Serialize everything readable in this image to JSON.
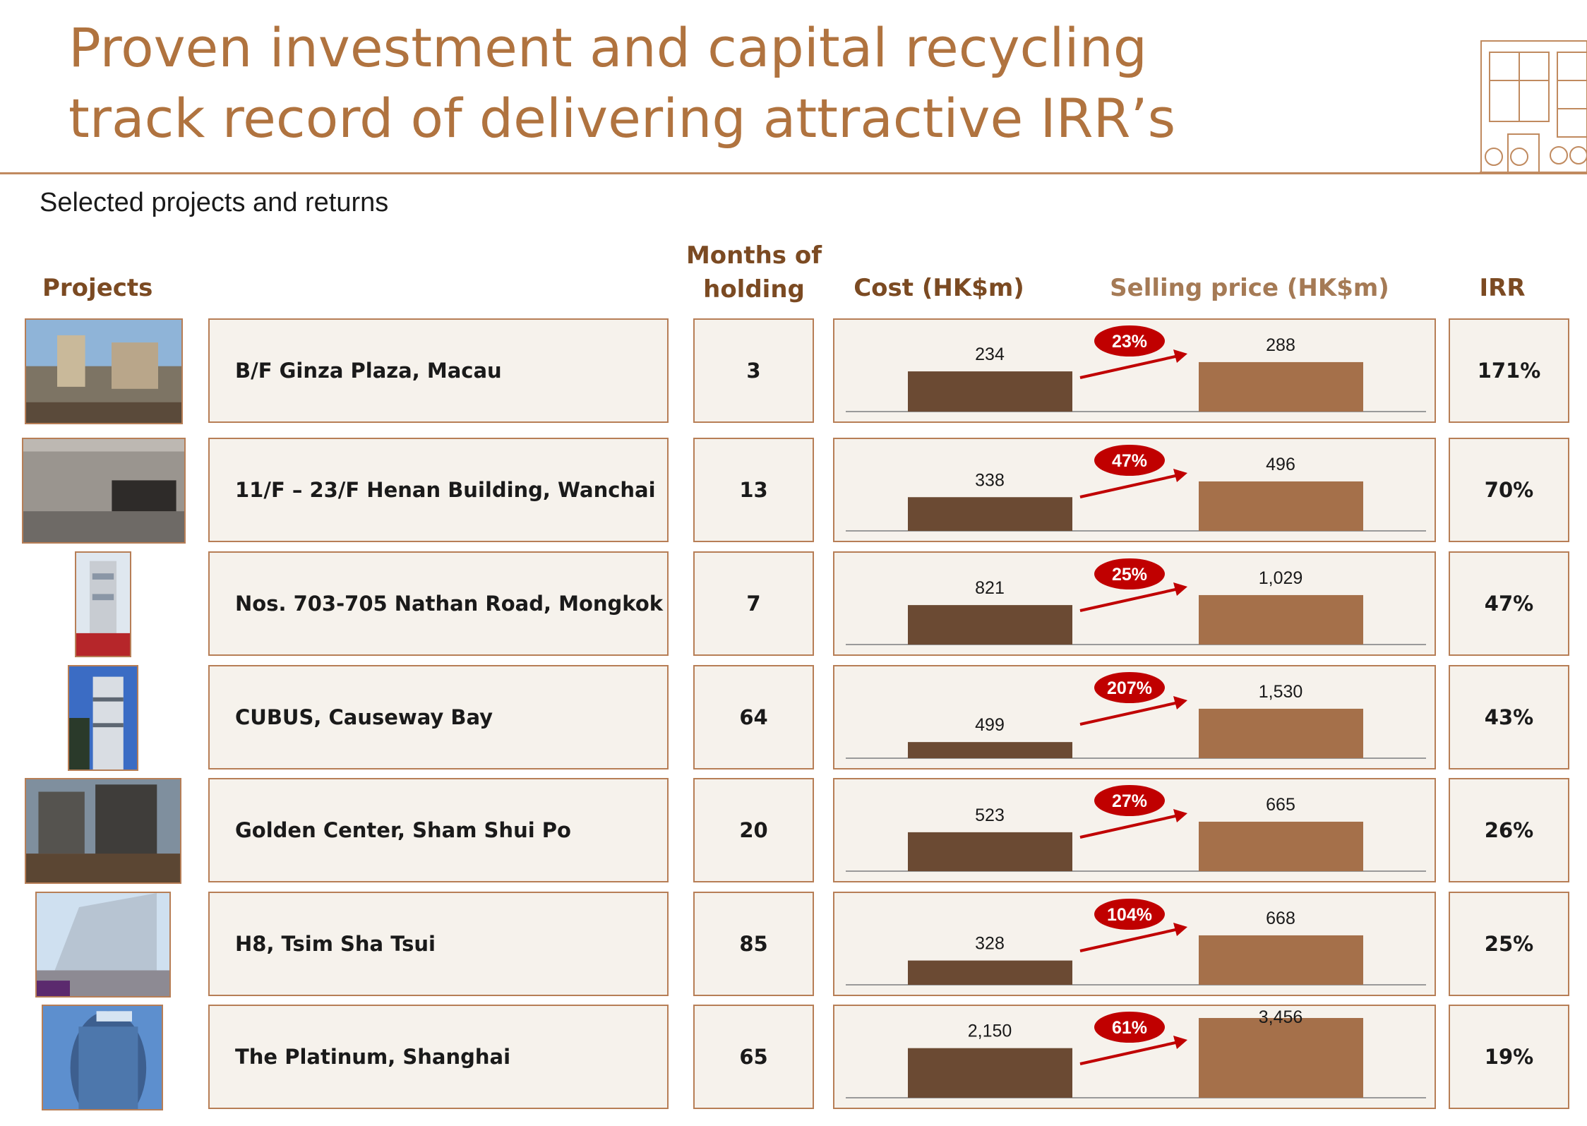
{
  "header": {
    "title_line1": "Proven investment and capital recycling",
    "title_line2": "track record of delivering attractive IRR’s",
    "subtitle": "Selected projects and returns"
  },
  "columns": {
    "projects": "Projects",
    "months_line1": "Months of",
    "months_line2": "holding",
    "cost": "Cost (HK$m)",
    "selling": "Selling price (HK$m)",
    "irr": "IRR"
  },
  "colors": {
    "cost_bar": "#6b4a33",
    "sell_bar": "#a5704a",
    "badge": "#c00000",
    "arrow": "#c00000",
    "title": "#b0733f",
    "box_border": "#b77e56",
    "box_fill": "#f6f2ec"
  },
  "chart_data": {
    "type": "bar",
    "categories": [
      "B/F Ginza Plaza, Macau",
      "11/F – 23/F Henan Building, Wanchai",
      "Nos. 703-705 Nathan Road, Mongkok",
      "CUBUS, Causeway Bay",
      "Golden Center, Sham Shui Po",
      "H8, Tsim Sha Tsui",
      "The Platinum, Shanghai"
    ],
    "series": [
      {
        "name": "Cost (HK$m)",
        "values": [
          234,
          338,
          821,
          499,
          523,
          328,
          2150
        ]
      },
      {
        "name": "Selling price (HK$m)",
        "values": [
          288,
          496,
          1029,
          1530,
          665,
          668,
          3456
        ]
      }
    ],
    "title": "Selected projects and returns"
  },
  "projects": [
    {
      "name": "B/F Ginza Plaza, Macau",
      "months": "3",
      "cost": 234,
      "cost_label": "234",
      "sell": 288,
      "sell_label": "288",
      "gain": "23%",
      "irr": "171%",
      "thumb_icon": "street-scene-icon"
    },
    {
      "name": "11/F – 23/F Henan Building, Wanchai",
      "months": "13",
      "cost": 338,
      "cost_label": "338",
      "sell": 496,
      "sell_label": "496",
      "gain": "47%",
      "irr": "70%",
      "thumb_icon": "lobby-interior-icon"
    },
    {
      "name": "Nos. 703-705 Nathan Road, Mongkok",
      "months": "7",
      "cost": 821,
      "cost_label": "821",
      "sell": 1029,
      "sell_label": "1,029",
      "gain": "25%",
      "irr": "47%",
      "thumb_icon": "tower-icon"
    },
    {
      "name": "CUBUS, Causeway Bay",
      "months": "64",
      "cost": 499,
      "cost_label": "499",
      "sell": 1530,
      "sell_label": "1,530",
      "gain": "207%",
      "irr": "43%",
      "thumb_icon": "tower-icon"
    },
    {
      "name": "Golden Center, Sham Shui Po",
      "months": "20",
      "cost": 523,
      "cost_label": "523",
      "sell": 665,
      "sell_label": "665",
      "gain": "27%",
      "irr": "26%",
      "thumb_icon": "street-scene-icon"
    },
    {
      "name": "H8, Tsim Sha Tsui",
      "months": "85",
      "cost": 328,
      "cost_label": "328",
      "sell": 668,
      "sell_label": "668",
      "gain": "104%",
      "irr": "25%",
      "thumb_icon": "glass-building-icon"
    },
    {
      "name": "The Platinum, Shanghai",
      "months": "65",
      "cost": 2150,
      "cost_label": "2,150",
      "sell": 3456,
      "sell_label": "3,456",
      "gain": "61%",
      "irr": "19%",
      "thumb_icon": "glass-tower-icon"
    }
  ]
}
